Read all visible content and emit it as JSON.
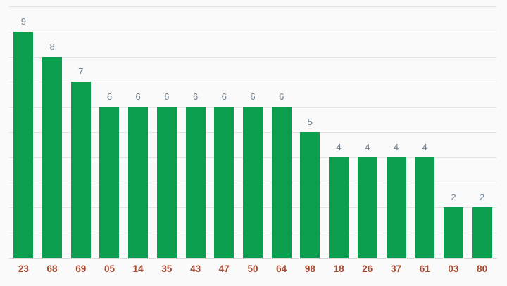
{
  "chart_data": {
    "type": "bar",
    "categories": [
      "23",
      "68",
      "69",
      "05",
      "14",
      "35",
      "43",
      "47",
      "50",
      "64",
      "98",
      "18",
      "26",
      "37",
      "61",
      "03",
      "80"
    ],
    "values": [
      9,
      8,
      7,
      6,
      6,
      6,
      6,
      6,
      6,
      6,
      5,
      4,
      4,
      4,
      4,
      2,
      2
    ],
    "ylim": [
      0,
      10
    ],
    "gridline_interval": 1,
    "grid": true,
    "legend": "none",
    "value_labels_shown": true
  },
  "style": {
    "background": "#fafafa",
    "bar_color": "#0b9e4f",
    "value_label_color": "#6e8091",
    "x_label_color": "#a54a32",
    "gridline_color": "#e4e4e4",
    "baseline_color": "#d8d8d8"
  }
}
